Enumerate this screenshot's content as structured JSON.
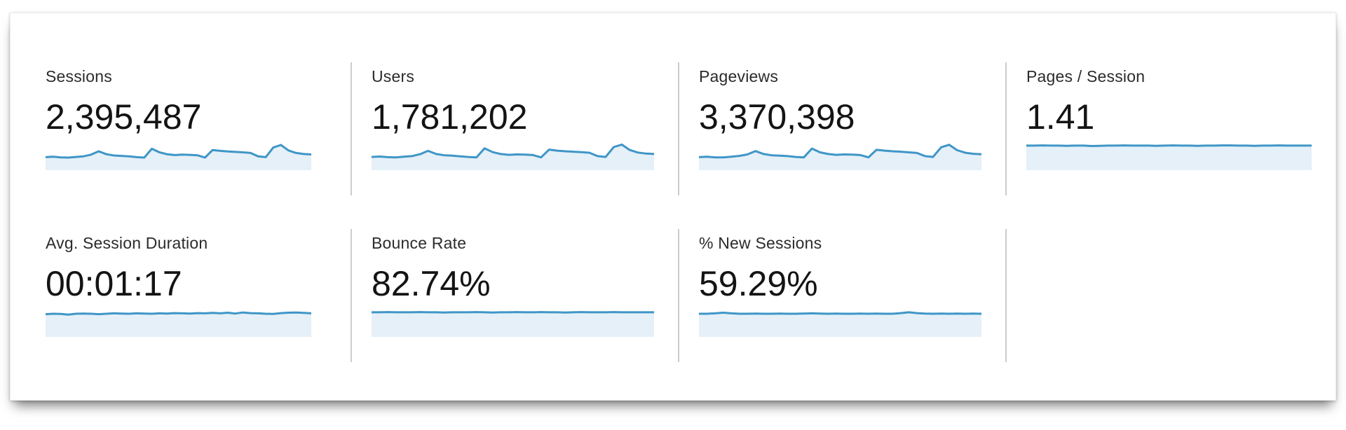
{
  "panel": {
    "metrics": [
      {
        "id": "sessions",
        "label": "Sessions",
        "value": "2,395,487",
        "spark": [
          0.32,
          0.34,
          0.31,
          0.3,
          0.33,
          0.36,
          0.44,
          0.6,
          0.46,
          0.4,
          0.38,
          0.36,
          0.32,
          0.3,
          0.72,
          0.55,
          0.46,
          0.42,
          0.44,
          0.43,
          0.41,
          0.3,
          0.66,
          0.62,
          0.59,
          0.57,
          0.55,
          0.52,
          0.36,
          0.32,
          0.78,
          0.9,
          0.64,
          0.52,
          0.47,
          0.45
        ]
      },
      {
        "id": "users",
        "label": "Users",
        "value": "1,781,202",
        "spark": [
          0.33,
          0.35,
          0.32,
          0.31,
          0.34,
          0.37,
          0.46,
          0.62,
          0.47,
          0.41,
          0.39,
          0.36,
          0.33,
          0.31,
          0.74,
          0.56,
          0.47,
          0.43,
          0.45,
          0.44,
          0.42,
          0.31,
          0.68,
          0.63,
          0.6,
          0.58,
          0.56,
          0.53,
          0.37,
          0.33,
          0.8,
          0.92,
          0.66,
          0.54,
          0.49,
          0.47
        ]
      },
      {
        "id": "pageviews",
        "label": "Pageviews",
        "value": "3,370,398",
        "spark": [
          0.32,
          0.34,
          0.31,
          0.31,
          0.34,
          0.38,
          0.45,
          0.61,
          0.47,
          0.41,
          0.39,
          0.37,
          0.33,
          0.31,
          0.73,
          0.55,
          0.47,
          0.43,
          0.45,
          0.44,
          0.42,
          0.31,
          0.67,
          0.63,
          0.6,
          0.58,
          0.55,
          0.52,
          0.37,
          0.33,
          0.79,
          0.91,
          0.65,
          0.53,
          0.48,
          0.46
        ]
      },
      {
        "id": "pages-per-session",
        "label": "Pages / Session",
        "value": "1.41",
        "spark": [
          0.87,
          0.87,
          0.88,
          0.87,
          0.87,
          0.86,
          0.87,
          0.87,
          0.85,
          0.86,
          0.87,
          0.87,
          0.88,
          0.87,
          0.87,
          0.87,
          0.86,
          0.87,
          0.88,
          0.87,
          0.87,
          0.86,
          0.87,
          0.87,
          0.88,
          0.88,
          0.87,
          0.87,
          0.86,
          0.87,
          0.87,
          0.88,
          0.87,
          0.87,
          0.87,
          0.87
        ]
      },
      {
        "id": "avg-session-duration",
        "label": "Avg. Session Duration",
        "value": "00:01:17",
        "spark": [
          0.78,
          0.8,
          0.79,
          0.76,
          0.8,
          0.81,
          0.8,
          0.78,
          0.8,
          0.82,
          0.81,
          0.8,
          0.82,
          0.81,
          0.8,
          0.82,
          0.81,
          0.83,
          0.82,
          0.81,
          0.83,
          0.82,
          0.84,
          0.82,
          0.85,
          0.81,
          0.86,
          0.83,
          0.82,
          0.8,
          0.79,
          0.83,
          0.85,
          0.86,
          0.84,
          0.82
        ]
      },
      {
        "id": "bounce-rate",
        "label": "Bounce Rate",
        "value": "82.74%",
        "spark": [
          0.87,
          0.87,
          0.88,
          0.87,
          0.87,
          0.87,
          0.88,
          0.87,
          0.87,
          0.86,
          0.87,
          0.87,
          0.87,
          0.88,
          0.87,
          0.86,
          0.87,
          0.87,
          0.88,
          0.87,
          0.87,
          0.88,
          0.87,
          0.87,
          0.86,
          0.87,
          0.88,
          0.87,
          0.87,
          0.87,
          0.88,
          0.87,
          0.87,
          0.87,
          0.87,
          0.87
        ]
      },
      {
        "id": "percent-new-sessions",
        "label": "% New Sessions",
        "value": "59.29%",
        "spark": [
          0.8,
          0.8,
          0.82,
          0.85,
          0.82,
          0.8,
          0.8,
          0.81,
          0.8,
          0.8,
          0.81,
          0.8,
          0.8,
          0.81,
          0.82,
          0.81,
          0.8,
          0.81,
          0.8,
          0.8,
          0.81,
          0.8,
          0.81,
          0.8,
          0.8,
          0.83,
          0.87,
          0.83,
          0.81,
          0.8,
          0.81,
          0.8,
          0.81,
          0.8,
          0.81,
          0.8
        ]
      }
    ]
  },
  "colors": {
    "spark_line": "#3f96c7",
    "spark_fill": "#e5f0f8",
    "divider": "#cccccc",
    "label_color": "#2b2b2b",
    "value_color": "#141414"
  }
}
